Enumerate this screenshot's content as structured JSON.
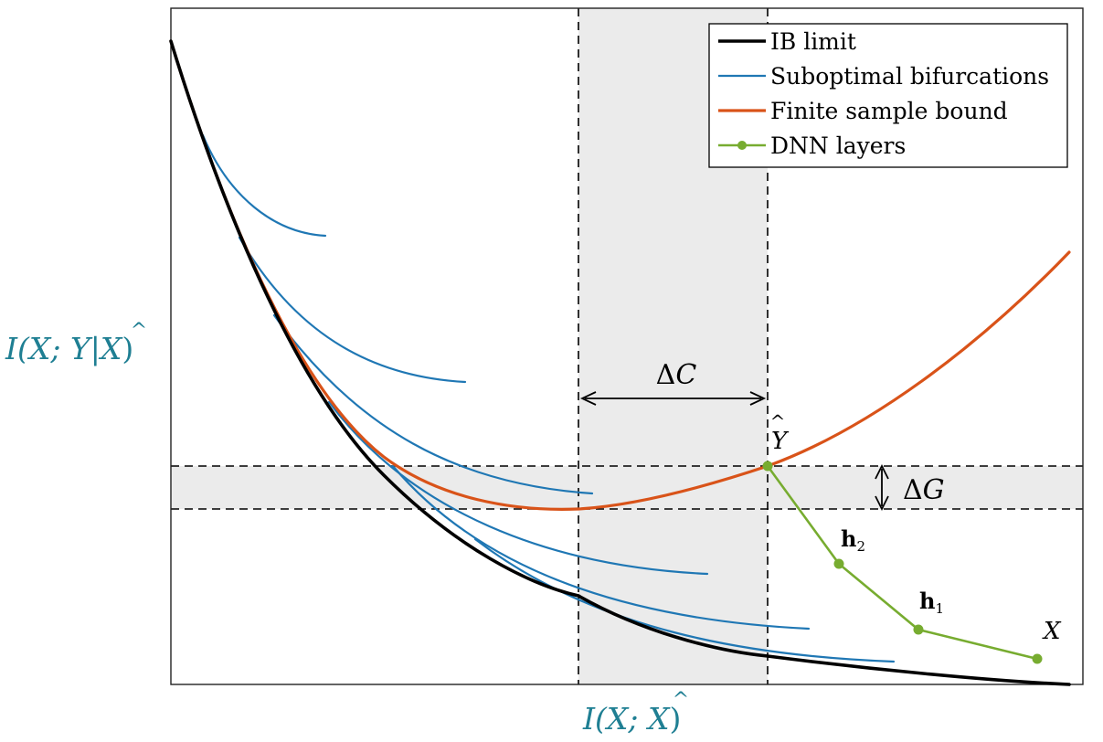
{
  "axes": {
    "ylabel": {
      "pre": "I(X; Y|",
      "hat": "X",
      "post": ")"
    },
    "xlabel": {
      "pre": "I(X; ",
      "hat": "X",
      "post": ")"
    },
    "label_color": "#1f7f93"
  },
  "legend": {
    "items": [
      {
        "label": "IB limit",
        "color": "#000000"
      },
      {
        "label": "Suboptimal bifurcations",
        "color": "#1f77b4"
      },
      {
        "label": "Finite sample bound",
        "color": "#d95319"
      },
      {
        "label": "DNN layers",
        "color": "#77ac30"
      }
    ]
  },
  "annotations": {
    "delta_c": {
      "delta": "Δ",
      "var": "C"
    },
    "delta_g": {
      "delta": "Δ",
      "var": "G"
    },
    "y_hat": "Y",
    "h2": {
      "bold": "h",
      "sub": "2"
    },
    "h1": {
      "bold": "h",
      "sub": "1"
    },
    "x_point": "X"
  },
  "colors": {
    "ib_limit": "#000000",
    "suboptimal": "#1f77b4",
    "finite_bound": "#d95319",
    "dnn": "#77ac30",
    "shade": "#ebebeb"
  }
}
